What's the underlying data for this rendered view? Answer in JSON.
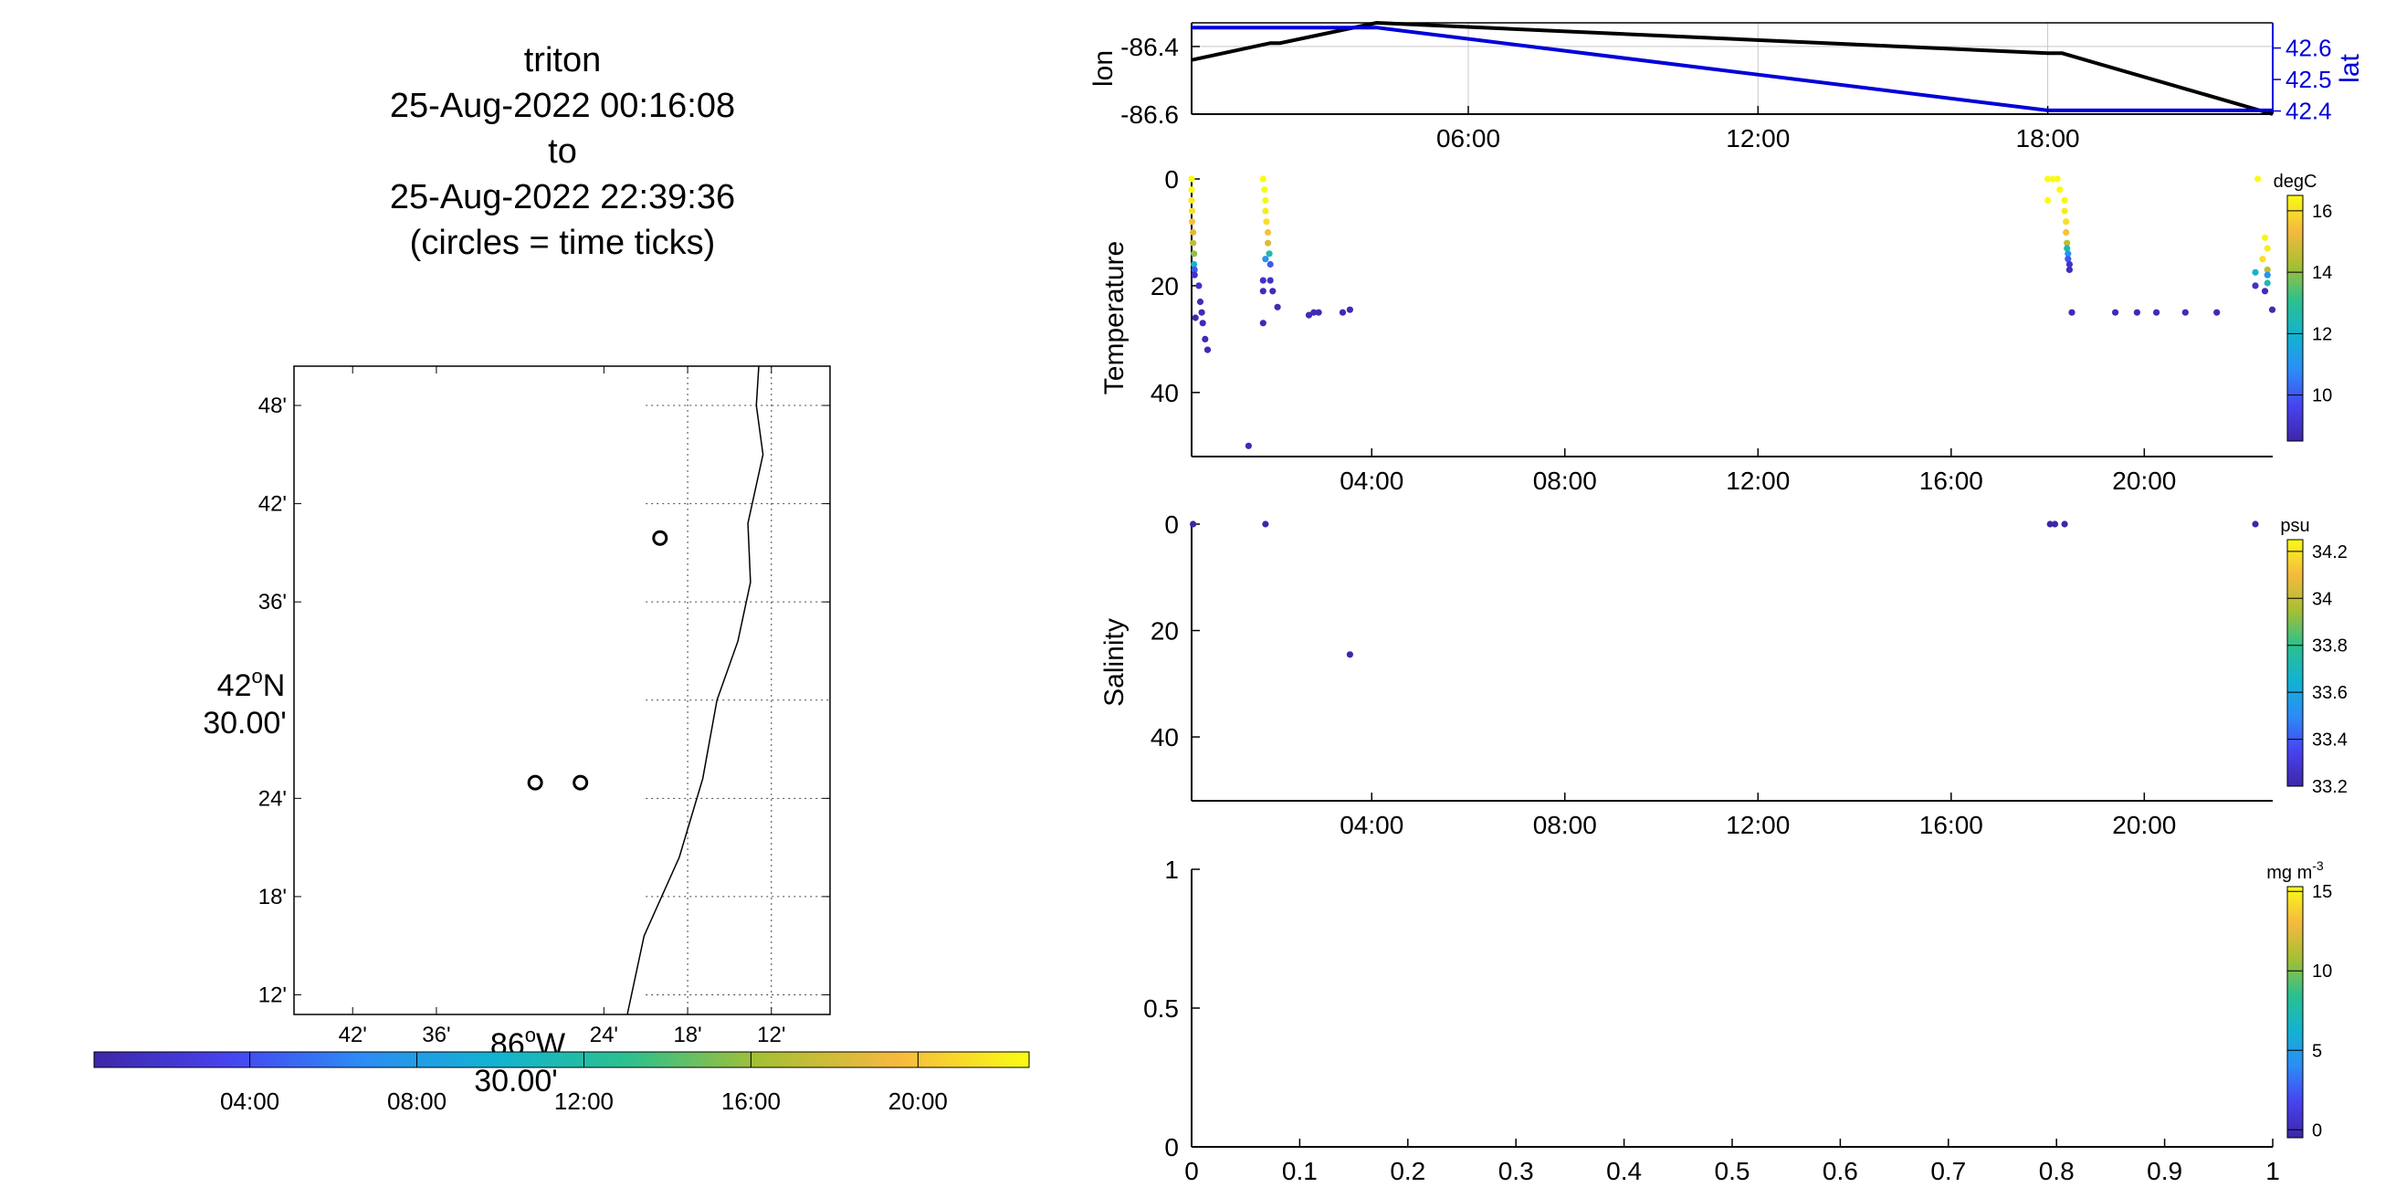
{
  "title_lines": [
    "triton",
    "25-Aug-2022 00:16:08",
    "to",
    "25-Aug-2022 22:39:36",
    "(circles = time ticks)"
  ],
  "colors": {
    "black": "#000000",
    "lat_blue": "#0000d8",
    "grid": "#c8c8c8",
    "scatter_dark": "#3a2a9a"
  },
  "colormap": [
    "#3e26a8",
    "#4743f0",
    "#2c8cf6",
    "#12b3d1",
    "#2cc08e",
    "#a7bf33",
    "#f6b93f",
    "#f9fb15"
  ],
  "chart_data": [
    {
      "id": "map",
      "type": "scatter",
      "title": "",
      "xlabel_lines": [
        "86°W",
        "30.00'"
      ],
      "ylabel_lines": [
        "42°N",
        "30.00'"
      ],
      "x_tick_labels": [
        "42'",
        "36'",
        "24'",
        "18'",
        "12'"
      ],
      "x_tick_values": [
        -86.7,
        -86.6,
        -86.4,
        -86.3,
        -86.2
      ],
      "y_tick_labels": [
        "48'",
        "42'",
        "36'",
        "24'",
        "18'",
        "12'"
      ],
      "y_tick_values": [
        42.8,
        42.7,
        42.6,
        42.4,
        42.3,
        42.2
      ],
      "xlim": [
        -86.77,
        -86.13
      ],
      "ylim": [
        42.18,
        42.84
      ],
      "grid_x": [
        -86.2,
        -86.3
      ],
      "grid_y": [
        42.8,
        42.7,
        42.6,
        42.5,
        42.4,
        42.3,
        42.2
      ],
      "grid_xmin": -86.35,
      "coastline": [
        [
          -86.215,
          42.84
        ],
        [
          -86.218,
          42.8
        ],
        [
          -86.21,
          42.75
        ],
        [
          -86.228,
          42.68
        ],
        [
          -86.225,
          42.62
        ],
        [
          -86.24,
          42.56
        ],
        [
          -86.265,
          42.5
        ],
        [
          -86.282,
          42.42
        ],
        [
          -86.31,
          42.34
        ],
        [
          -86.352,
          42.26
        ],
        [
          -86.372,
          42.18
        ]
      ],
      "circles": [
        [
          -86.333,
          42.665
        ],
        [
          -86.482,
          42.416
        ],
        [
          -86.428,
          42.416
        ]
      ]
    },
    {
      "id": "colorbar-time",
      "type": "colorbar",
      "tick_labels": [
        "04:00",
        "08:00",
        "12:00",
        "16:00",
        "20:00"
      ],
      "tick_values": [
        4,
        8,
        12,
        16,
        20
      ],
      "range": [
        0.27,
        22.66
      ]
    },
    {
      "id": "lonlat",
      "type": "line",
      "ylabel": "lon",
      "ylabel_right": "lat",
      "xlim": [
        0.27,
        22.66
      ],
      "x_tick_labels": [
        "06:00",
        "12:00",
        "18:00"
      ],
      "x_tick_values": [
        6,
        12,
        18
      ],
      "ylim": [
        -86.6,
        -86.33
      ],
      "y_tick_labels": [
        "-86.4",
        "-86.6"
      ],
      "y_tick_values": [
        -86.4,
        -86.6
      ],
      "ylim_right": [
        42.39,
        42.68
      ],
      "y_tick_labels_right": [
        "42.6",
        "42.5",
        "42.4"
      ],
      "y_tick_values_right": [
        42.6,
        42.5,
        42.4
      ],
      "series": [
        {
          "name": "lon",
          "axis": "left",
          "x": [
            0.27,
            1.9,
            2.1,
            4.1,
            18,
            18.3,
            22.66
          ],
          "y": [
            -86.44,
            -86.39,
            -86.39,
            -86.33,
            -86.42,
            -86.42,
            -86.6
          ]
        },
        {
          "name": "lat",
          "axis": "right",
          "x": [
            0.27,
            4.1,
            18,
            22.66
          ],
          "y": [
            42.665,
            42.665,
            42.402,
            42.402
          ]
        }
      ]
    },
    {
      "id": "temperature",
      "type": "scatter",
      "ylabel": "Temperature",
      "xlim": [
        0.27,
        22.66
      ],
      "x_tick_labels": [
        "04:00",
        "08:00",
        "12:00",
        "16:00",
        "20:00"
      ],
      "x_tick_values": [
        4,
        8,
        12,
        16,
        20
      ],
      "ylim": [
        52,
        0
      ],
      "y_tick_labels": [
        "0",
        "20",
        "40"
      ],
      "y_tick_values": [
        0,
        20,
        40
      ],
      "colorbar": {
        "unit": "degC",
        "range": [
          8.5,
          16.5
        ],
        "tick_labels": [
          "16",
          "14",
          "12",
          "10"
        ],
        "tick_values": [
          16,
          14,
          12,
          10
        ]
      },
      "points": [
        [
          0.27,
          0,
          16.5
        ],
        [
          0.27,
          2,
          16.5
        ],
        [
          0.27,
          4,
          16.2
        ],
        [
          0.28,
          6,
          16
        ],
        [
          0.28,
          8,
          15.5
        ],
        [
          0.3,
          10,
          15
        ],
        [
          0.3,
          12,
          14.5
        ],
        [
          0.32,
          14,
          14
        ],
        [
          0.32,
          16,
          12
        ],
        [
          0.33,
          17,
          10
        ],
        [
          0.33,
          18,
          9
        ],
        [
          0.35,
          26,
          8.7
        ],
        [
          0.42,
          20,
          9
        ],
        [
          0.45,
          23,
          8.8
        ],
        [
          0.48,
          25,
          8.7
        ],
        [
          0.5,
          27,
          8.7
        ],
        [
          0.55,
          30,
          8.7
        ],
        [
          0.6,
          32,
          8.7
        ],
        [
          1.45,
          50,
          8.7
        ],
        [
          1.75,
          0,
          16.5
        ],
        [
          1.78,
          2,
          16.5
        ],
        [
          1.8,
          4,
          16.4
        ],
        [
          1.8,
          6,
          16.2
        ],
        [
          1.82,
          8,
          16
        ],
        [
          1.85,
          10,
          15.5
        ],
        [
          1.85,
          12,
          15
        ],
        [
          1.88,
          14,
          12.5
        ],
        [
          1.9,
          16,
          10
        ],
        [
          1.9,
          19,
          9
        ],
        [
          1.95,
          21,
          8.8
        ],
        [
          1.75,
          27,
          8.7
        ],
        [
          1.8,
          15,
          11
        ],
        [
          1.75,
          19,
          9
        ],
        [
          1.75,
          21,
          8.8
        ],
        [
          2.05,
          24,
          8.7
        ],
        [
          2.7,
          25.5,
          8.7
        ],
        [
          2.8,
          25,
          8.7
        ],
        [
          2.9,
          25,
          8.7
        ],
        [
          3.4,
          25,
          8.7
        ],
        [
          3.55,
          24.5,
          8.7
        ],
        [
          18,
          0,
          16.5
        ],
        [
          18.1,
          0,
          16.5
        ],
        [
          18.2,
          0,
          16.5
        ],
        [
          18,
          4,
          16.5
        ],
        [
          18.25,
          2,
          16.5
        ],
        [
          18.35,
          4,
          16.4
        ],
        [
          18.35,
          6,
          16.2
        ],
        [
          18.38,
          8,
          16
        ],
        [
          18.38,
          10,
          15.5
        ],
        [
          18.4,
          12,
          14.5
        ],
        [
          18.4,
          13,
          12.5
        ],
        [
          18.42,
          14,
          11
        ],
        [
          18.42,
          15,
          10
        ],
        [
          18.45,
          16,
          9
        ],
        [
          18.45,
          17,
          8.8
        ],
        [
          18.5,
          25,
          8.7
        ],
        [
          19.4,
          25,
          8.7
        ],
        [
          19.85,
          25,
          8.7
        ],
        [
          20.25,
          25,
          8.7
        ],
        [
          20.85,
          25,
          8.7
        ],
        [
          21.5,
          25,
          8.7
        ],
        [
          22.35,
          0,
          16.5
        ],
        [
          22.5,
          11,
          16.4
        ],
        [
          22.55,
          13,
          16.2
        ],
        [
          22.45,
          15,
          16
        ],
        [
          22.55,
          17,
          14.5
        ],
        [
          22.3,
          17.5,
          12
        ],
        [
          22.55,
          18,
          11
        ],
        [
          22.55,
          19.5,
          12.5
        ],
        [
          22.3,
          20,
          9
        ],
        [
          22.5,
          21,
          8.8
        ],
        [
          22.65,
          24.5,
          8.7
        ]
      ]
    },
    {
      "id": "salinity",
      "type": "scatter",
      "ylabel": "Salinity",
      "xlim": [
        0.27,
        22.66
      ],
      "x_tick_labels": [
        "04:00",
        "08:00",
        "12:00",
        "16:00",
        "20:00"
      ],
      "x_tick_values": [
        4,
        8,
        12,
        16,
        20
      ],
      "ylim": [
        52,
        0
      ],
      "y_tick_labels": [
        "0",
        "20",
        "40"
      ],
      "y_tick_values": [
        0,
        20,
        40
      ],
      "colorbar": {
        "unit": "psu",
        "range": [
          33.2,
          34.25
        ],
        "tick_labels": [
          "34.2",
          "34",
          "33.8",
          "33.6",
          "33.4",
          "33.2"
        ],
        "tick_values": [
          34.2,
          34.0,
          33.8,
          33.6,
          33.4,
          33.2
        ]
      },
      "points": [
        [
          0.3,
          0,
          33.2
        ],
        [
          1.8,
          0,
          33.2
        ],
        [
          3.55,
          24.5,
          33.2
        ],
        [
          18.05,
          0,
          33.2
        ],
        [
          18.15,
          0,
          33.2
        ],
        [
          18.35,
          0,
          33.2
        ],
        [
          22.3,
          0,
          33.2
        ]
      ]
    },
    {
      "id": "empty",
      "type": "scatter",
      "xlim": [
        0,
        1
      ],
      "x_tick_labels": [
        "0",
        "0.1",
        "0.2",
        "0.3",
        "0.4",
        "0.5",
        "0.6",
        "0.7",
        "0.8",
        "0.9",
        "1"
      ],
      "x_tick_values": [
        0,
        0.1,
        0.2,
        0.3,
        0.4,
        0.5,
        0.6,
        0.7,
        0.8,
        0.9,
        1
      ],
      "ylim": [
        0,
        1
      ],
      "y_tick_labels": [
        "0",
        "0.5",
        "1"
      ],
      "y_tick_values": [
        0,
        0.5,
        1
      ],
      "colorbar": {
        "unit": "mg m",
        "unit_sup": "-3",
        "range": [
          -0.5,
          15.3
        ],
        "tick_labels": [
          "15",
          "10",
          "5",
          "0"
        ],
        "tick_values": [
          15,
          10,
          5,
          0
        ]
      },
      "points": []
    }
  ]
}
